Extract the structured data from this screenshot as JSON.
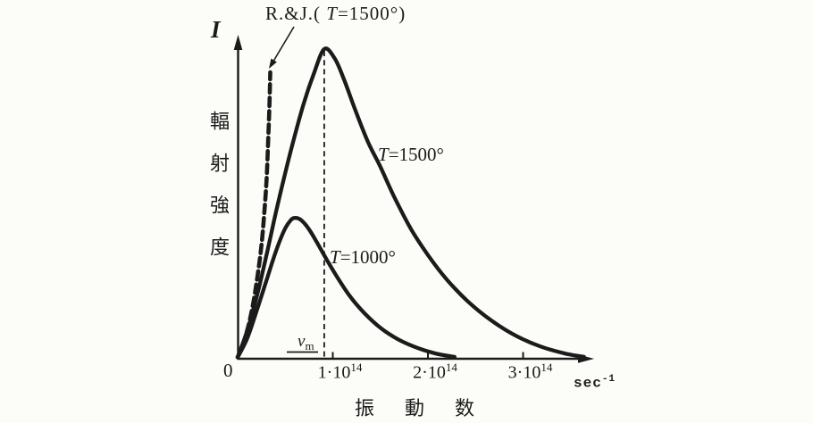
{
  "figure": {
    "background": "#fcfcf9",
    "ink": "#1b1b1b"
  },
  "annotation_rj": {
    "prefix": "R.&J.( ",
    "variable": "T",
    "suffix": "=1500°)"
  },
  "y_axis": {
    "symbol": "I",
    "label": "輻射強度"
  },
  "x_axis": {
    "origin": "0",
    "label": "振動数",
    "unit": {
      "base": "sec",
      "exponent": "-1"
    },
    "ticks": [
      {
        "value": 1,
        "base": "1·10",
        "exponent": "14"
      },
      {
        "value": 2,
        "base": "2·10",
        "exponent": "14"
      },
      {
        "value": 3,
        "base": "3·10",
        "exponent": "14"
      }
    ]
  },
  "labels": {
    "t1500": {
      "variable": "T",
      "rest": "=1500°"
    },
    "t1000": {
      "variable": "T",
      "rest": "=1000°"
    },
    "peak": {
      "variable": "ν",
      "subscript": "m"
    }
  },
  "chart_data": {
    "type": "line",
    "xlabel": "振動数",
    "ylabel": "輻射強度 (I)",
    "x_unit": "sec⁻¹",
    "x_scale_note": "x values in units of 10^14 sec^-1",
    "y_scale_note": "relative intensity, T=1500° peak = 1",
    "x_range": [
      0,
      3.75
    ],
    "y_range": [
      0,
      1.05
    ],
    "x_tick_values": [
      1,
      2,
      3
    ],
    "grid": false,
    "legend_position": "inline-labels",
    "peak_marker": {
      "label": "νm",
      "x": 0.91,
      "series": "T=1500°"
    },
    "series": [
      {
        "id": "curve-t1500",
        "name": "T=1500°",
        "style": "solid",
        "points": [
          [
            0.0,
            0.005
          ],
          [
            0.1,
            0.09
          ],
          [
            0.2,
            0.2
          ],
          [
            0.3,
            0.33
          ],
          [
            0.4,
            0.47
          ],
          [
            0.5,
            0.6
          ],
          [
            0.6,
            0.72
          ],
          [
            0.7,
            0.83
          ],
          [
            0.8,
            0.92
          ],
          [
            0.91,
            1.0
          ],
          [
            1.02,
            0.97
          ],
          [
            1.12,
            0.9
          ],
          [
            1.24,
            0.8
          ],
          [
            1.37,
            0.7
          ],
          [
            1.5,
            0.62
          ],
          [
            1.65,
            0.52
          ],
          [
            1.82,
            0.42
          ],
          [
            2.0,
            0.335
          ],
          [
            2.2,
            0.255
          ],
          [
            2.42,
            0.185
          ],
          [
            2.66,
            0.125
          ],
          [
            2.92,
            0.075
          ],
          [
            3.18,
            0.04
          ],
          [
            3.44,
            0.017
          ],
          [
            3.64,
            0.006
          ]
        ]
      },
      {
        "id": "curve-t1000",
        "name": "T=1000°",
        "style": "solid",
        "points": [
          [
            0.0,
            0.005
          ],
          [
            0.1,
            0.065
          ],
          [
            0.2,
            0.155
          ],
          [
            0.3,
            0.25
          ],
          [
            0.4,
            0.345
          ],
          [
            0.49,
            0.415
          ],
          [
            0.56,
            0.448
          ],
          [
            0.61,
            0.455
          ],
          [
            0.67,
            0.447
          ],
          [
            0.75,
            0.418
          ],
          [
            0.84,
            0.372
          ],
          [
            0.94,
            0.318
          ],
          [
            1.05,
            0.262
          ],
          [
            1.18,
            0.202
          ],
          [
            1.33,
            0.148
          ],
          [
            1.5,
            0.1
          ],
          [
            1.69,
            0.062
          ],
          [
            1.89,
            0.035
          ],
          [
            2.08,
            0.017
          ],
          [
            2.28,
            0.006
          ]
        ]
      },
      {
        "id": "curve-rayleigh-jeans",
        "name": "R.&J. (T=1500°)",
        "style": "dashed",
        "points": [
          [
            0.0,
            0.005
          ],
          [
            0.06,
            0.05
          ],
          [
            0.12,
            0.115
          ],
          [
            0.17,
            0.19
          ],
          [
            0.21,
            0.27
          ],
          [
            0.25,
            0.365
          ],
          [
            0.28,
            0.47
          ],
          [
            0.305,
            0.585
          ],
          [
            0.32,
            0.7
          ],
          [
            0.333,
            0.81
          ],
          [
            0.343,
            0.925
          ]
        ]
      }
    ]
  }
}
